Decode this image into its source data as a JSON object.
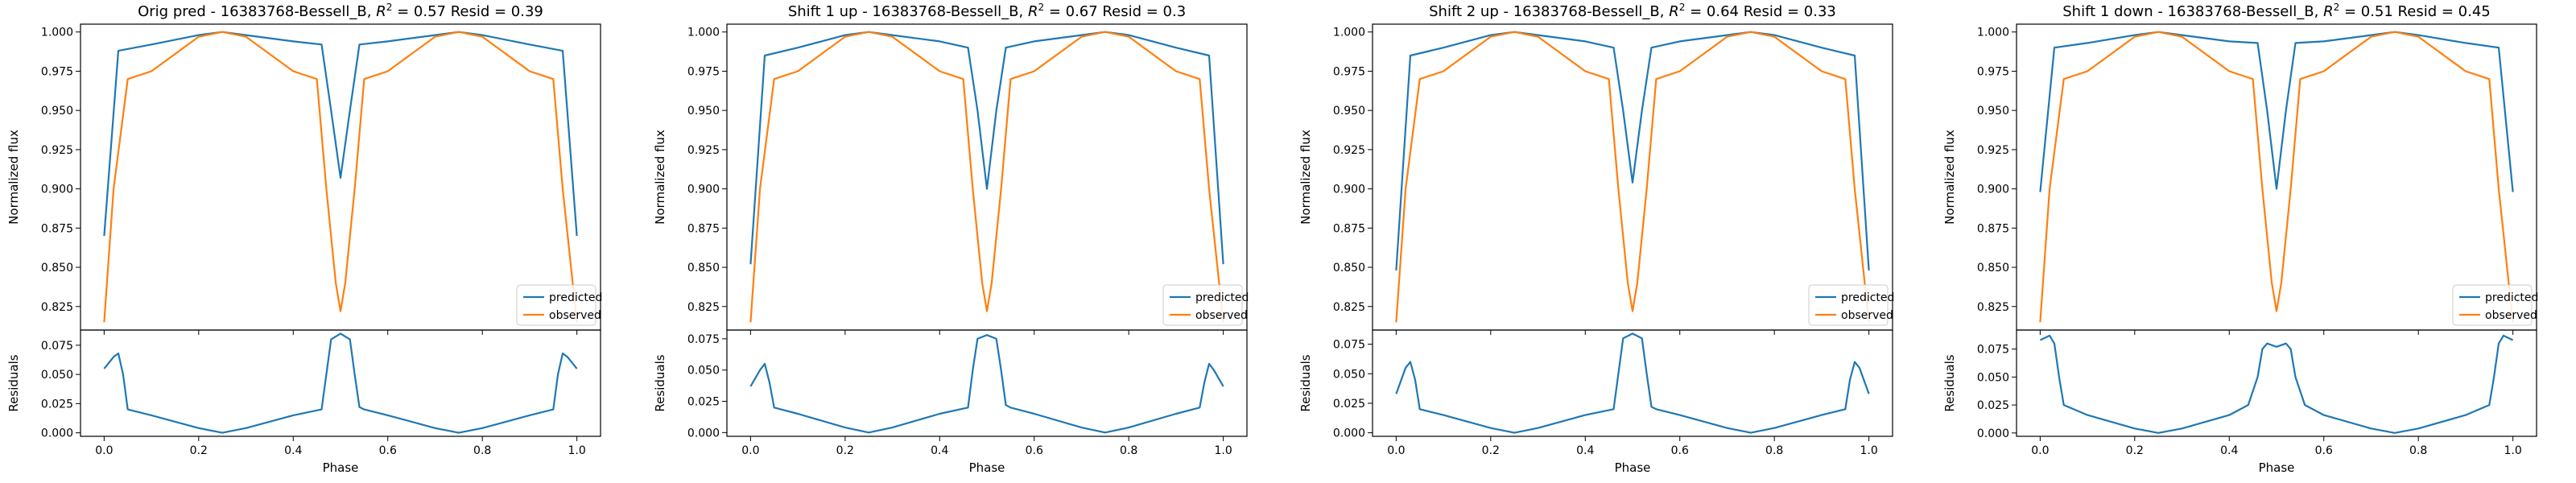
{
  "figure": {
    "colors": {
      "predicted": "#1f77b4",
      "observed": "#ff7f0e",
      "axes": "#000000"
    }
  },
  "chart_data": [
    {
      "type": "line",
      "title": "Orig pred - 16383768-Bessell_B, $R^2 = 0.57$ Resid = 0.39",
      "title_parts": {
        "pre": "Orig pred - 16383768-Bessell_B, ",
        "r": "R",
        "sup": "2",
        "post": " = 0.57 Resid = 0.39"
      },
      "top": {
        "ylabel": "Normalized flux",
        "xlim": [
          -0.05,
          1.05
        ],
        "ylim": [
          0.81,
          1.005
        ],
        "yticks": [
          "0.825",
          "0.850",
          "0.875",
          "0.900",
          "0.925",
          "0.950",
          "0.975",
          "1.000"
        ],
        "legend": "lower right",
        "series": [
          {
            "name": "predicted",
            "x": [
              0.0,
              0.03,
              0.1,
              0.2,
              0.25,
              0.3,
              0.4,
              0.46,
              0.48,
              0.5,
              0.52,
              0.54,
              0.6,
              0.7,
              0.75,
              0.8,
              0.9,
              0.97,
              1.0
            ],
            "y": [
              0.87,
              0.988,
              0.992,
              0.998,
              1.0,
              0.998,
              0.994,
              0.992,
              0.95,
              0.907,
              0.95,
              0.992,
              0.994,
              0.998,
              1.0,
              0.998,
              0.992,
              0.988,
              0.87
            ]
          },
          {
            "name": "observed",
            "x": [
              0.0,
              0.02,
              0.05,
              0.1,
              0.2,
              0.25,
              0.3,
              0.4,
              0.45,
              0.47,
              0.49,
              0.5,
              0.51,
              0.53,
              0.55,
              0.6,
              0.7,
              0.75,
              0.8,
              0.9,
              0.95,
              0.97,
              1.0
            ],
            "y": [
              0.815,
              0.9,
              0.97,
              0.975,
              0.997,
              1.0,
              0.997,
              0.975,
              0.97,
              0.9,
              0.84,
              0.822,
              0.84,
              0.9,
              0.97,
              0.975,
              0.997,
              1.0,
              0.997,
              0.975,
              0.97,
              0.9,
              0.815
            ]
          }
        ]
      },
      "bottom": {
        "xlabel": "Phase",
        "ylabel": "Residuals",
        "xlim": [
          -0.05,
          1.05
        ],
        "ylim": [
          -0.003,
          0.088
        ],
        "xticks": [
          "0.0",
          "0.2",
          "0.4",
          "0.6",
          "0.8",
          "1.0"
        ],
        "yticks": [
          "0.000",
          "0.025",
          "0.050",
          "0.075"
        ],
        "series": [
          {
            "name": "residuals",
            "x": [
              0.0,
              0.02,
              0.03,
              0.04,
              0.05,
              0.1,
              0.2,
              0.25,
              0.3,
              0.4,
              0.46,
              0.47,
              0.48,
              0.5,
              0.52,
              0.53,
              0.54,
              0.55,
              0.6,
              0.7,
              0.75,
              0.8,
              0.9,
              0.95,
              0.96,
              0.97,
              0.98,
              1.0
            ],
            "y": [
              0.055,
              0.065,
              0.068,
              0.05,
              0.02,
              0.015,
              0.004,
              0.0,
              0.004,
              0.015,
              0.02,
              0.05,
              0.08,
              0.085,
              0.08,
              0.05,
              0.022,
              0.02,
              0.015,
              0.004,
              0.0,
              0.004,
              0.015,
              0.02,
              0.05,
              0.068,
              0.065,
              0.055
            ]
          }
        ]
      }
    },
    {
      "type": "line",
      "title": "Shift 1 up - 16383768-Bessell_B, $R^2 = 0.67$ Resid = 0.3",
      "title_parts": {
        "pre": "Shift 1 up - 16383768-Bessell_B, ",
        "r": "R",
        "sup": "2",
        "post": " = 0.67 Resid = 0.3"
      },
      "top": {
        "ylabel": "Normalized flux",
        "xlim": [
          -0.05,
          1.05
        ],
        "ylim": [
          0.81,
          1.005
        ],
        "yticks": [
          "0.825",
          "0.850",
          "0.875",
          "0.900",
          "0.925",
          "0.950",
          "0.975",
          "1.000"
        ],
        "legend": "lower right",
        "series": [
          {
            "name": "predicted",
            "x": [
              0.0,
              0.03,
              0.1,
              0.2,
              0.25,
              0.3,
              0.4,
              0.46,
              0.48,
              0.5,
              0.52,
              0.54,
              0.6,
              0.7,
              0.75,
              0.8,
              0.9,
              0.97,
              1.0
            ],
            "y": [
              0.852,
              0.985,
              0.99,
              0.998,
              1.0,
              0.998,
              0.994,
              0.99,
              0.95,
              0.9,
              0.95,
              0.99,
              0.994,
              0.998,
              1.0,
              0.998,
              0.99,
              0.985,
              0.852
            ]
          },
          {
            "name": "observed",
            "x": [
              0.0,
              0.02,
              0.05,
              0.1,
              0.2,
              0.25,
              0.3,
              0.4,
              0.45,
              0.47,
              0.49,
              0.5,
              0.51,
              0.53,
              0.55,
              0.6,
              0.7,
              0.75,
              0.8,
              0.9,
              0.95,
              0.97,
              1.0
            ],
            "y": [
              0.815,
              0.9,
              0.97,
              0.975,
              0.997,
              1.0,
              0.997,
              0.975,
              0.97,
              0.9,
              0.84,
              0.822,
              0.84,
              0.9,
              0.97,
              0.975,
              0.997,
              1.0,
              0.997,
              0.975,
              0.97,
              0.9,
              0.815
            ]
          }
        ]
      },
      "bottom": {
        "xlabel": "Phase",
        "ylabel": "Residuals",
        "xlim": [
          -0.05,
          1.05
        ],
        "ylim": [
          -0.003,
          0.082
        ],
        "xticks": [
          "0.0",
          "0.2",
          "0.4",
          "0.6",
          "0.8",
          "1.0"
        ],
        "yticks": [
          "0.000",
          "0.025",
          "0.050",
          "0.075"
        ],
        "series": [
          {
            "name": "residuals",
            "x": [
              0.0,
              0.02,
              0.03,
              0.04,
              0.05,
              0.1,
              0.2,
              0.25,
              0.3,
              0.4,
              0.46,
              0.47,
              0.48,
              0.5,
              0.52,
              0.53,
              0.54,
              0.55,
              0.6,
              0.7,
              0.75,
              0.8,
              0.9,
              0.95,
              0.96,
              0.97,
              0.98,
              1.0
            ],
            "y": [
              0.037,
              0.05,
              0.055,
              0.04,
              0.02,
              0.015,
              0.004,
              0.0,
              0.004,
              0.015,
              0.02,
              0.05,
              0.075,
              0.078,
              0.075,
              0.05,
              0.022,
              0.02,
              0.015,
              0.004,
              0.0,
              0.004,
              0.015,
              0.02,
              0.04,
              0.055,
              0.05,
              0.037
            ]
          }
        ]
      }
    },
    {
      "type": "line",
      "title": "Shift 2 up - 16383768-Bessell_B, $R^2 = 0.64$ Resid = 0.33",
      "title_parts": {
        "pre": "Shift 2 up - 16383768-Bessell_B, ",
        "r": "R",
        "sup": "2",
        "post": " = 0.64 Resid = 0.33"
      },
      "top": {
        "ylabel": "Normalized flux",
        "xlim": [
          -0.05,
          1.05
        ],
        "ylim": [
          0.81,
          1.005
        ],
        "yticks": [
          "0.825",
          "0.850",
          "0.875",
          "0.900",
          "0.925",
          "0.950",
          "0.975",
          "1.000"
        ],
        "legend": "lower right",
        "series": [
          {
            "name": "predicted",
            "x": [
              0.0,
              0.03,
              0.1,
              0.2,
              0.25,
              0.3,
              0.4,
              0.46,
              0.48,
              0.5,
              0.52,
              0.54,
              0.6,
              0.7,
              0.75,
              0.8,
              0.9,
              0.97,
              1.0
            ],
            "y": [
              0.848,
              0.985,
              0.99,
              0.998,
              1.0,
              0.998,
              0.994,
              0.99,
              0.95,
              0.904,
              0.95,
              0.99,
              0.994,
              0.998,
              1.0,
              0.998,
              0.99,
              0.985,
              0.848
            ]
          },
          {
            "name": "observed",
            "x": [
              0.0,
              0.02,
              0.05,
              0.1,
              0.2,
              0.25,
              0.3,
              0.4,
              0.45,
              0.47,
              0.49,
              0.5,
              0.51,
              0.53,
              0.55,
              0.6,
              0.7,
              0.75,
              0.8,
              0.9,
              0.95,
              0.97,
              1.0
            ],
            "y": [
              0.815,
              0.9,
              0.97,
              0.975,
              0.997,
              1.0,
              0.997,
              0.975,
              0.97,
              0.9,
              0.84,
              0.822,
              0.84,
              0.9,
              0.97,
              0.975,
              0.997,
              1.0,
              0.997,
              0.975,
              0.97,
              0.9,
              0.815
            ]
          }
        ]
      },
      "bottom": {
        "xlabel": "Phase",
        "ylabel": "Residuals",
        "xlim": [
          -0.05,
          1.05
        ],
        "ylim": [
          -0.003,
          0.087
        ],
        "xticks": [
          "0.0",
          "0.2",
          "0.4",
          "0.6",
          "0.8",
          "1.0"
        ],
        "yticks": [
          "0.000",
          "0.025",
          "0.050",
          "0.075"
        ],
        "series": [
          {
            "name": "residuals",
            "x": [
              0.0,
              0.02,
              0.03,
              0.04,
              0.05,
              0.1,
              0.2,
              0.25,
              0.3,
              0.4,
              0.46,
              0.47,
              0.48,
              0.5,
              0.52,
              0.53,
              0.54,
              0.55,
              0.6,
              0.7,
              0.75,
              0.8,
              0.9,
              0.95,
              0.96,
              0.97,
              0.98,
              1.0
            ],
            "y": [
              0.033,
              0.055,
              0.06,
              0.045,
              0.02,
              0.015,
              0.004,
              0.0,
              0.004,
              0.015,
              0.02,
              0.05,
              0.08,
              0.084,
              0.08,
              0.05,
              0.022,
              0.02,
              0.015,
              0.004,
              0.0,
              0.004,
              0.015,
              0.02,
              0.045,
              0.06,
              0.055,
              0.033
            ]
          }
        ]
      }
    },
    {
      "type": "line",
      "title": "Shift 1 down - 16383768-Bessell_B, $R^2 = 0.51$ Resid = 0.45",
      "title_parts": {
        "pre": "Shift 1 down - 16383768-Bessell_B, ",
        "r": "R",
        "sup": "2",
        "post": " = 0.51 Resid = 0.45"
      },
      "top": {
        "ylabel": "Normalized flux",
        "xlim": [
          -0.05,
          1.05
        ],
        "ylim": [
          0.81,
          1.005
        ],
        "yticks": [
          "0.825",
          "0.850",
          "0.875",
          "0.900",
          "0.925",
          "0.950",
          "0.975",
          "1.000"
        ],
        "legend": "lower right",
        "series": [
          {
            "name": "predicted",
            "x": [
              0.0,
              0.03,
              0.1,
              0.2,
              0.25,
              0.3,
              0.4,
              0.46,
              0.48,
              0.5,
              0.52,
              0.54,
              0.6,
              0.7,
              0.75,
              0.8,
              0.9,
              0.97,
              1.0
            ],
            "y": [
              0.898,
              0.99,
              0.993,
              0.998,
              1.0,
              0.998,
              0.994,
              0.993,
              0.95,
              0.9,
              0.95,
              0.993,
              0.994,
              0.998,
              1.0,
              0.998,
              0.993,
              0.99,
              0.898
            ]
          },
          {
            "name": "observed",
            "x": [
              0.0,
              0.02,
              0.05,
              0.1,
              0.2,
              0.25,
              0.3,
              0.4,
              0.45,
              0.47,
              0.49,
              0.5,
              0.51,
              0.53,
              0.55,
              0.6,
              0.7,
              0.75,
              0.8,
              0.9,
              0.95,
              0.97,
              1.0
            ],
            "y": [
              0.815,
              0.9,
              0.97,
              0.975,
              0.997,
              1.0,
              0.997,
              0.975,
              0.97,
              0.9,
              0.84,
              0.822,
              0.84,
              0.9,
              0.97,
              0.975,
              0.997,
              1.0,
              0.997,
              0.975,
              0.97,
              0.9,
              0.815
            ]
          }
        ]
      },
      "bottom": {
        "xlabel": "Phase",
        "ylabel": "Residuals",
        "xlim": [
          -0.05,
          1.05
        ],
        "ylim": [
          -0.003,
          0.092
        ],
        "xticks": [
          "0.0",
          "0.2",
          "0.4",
          "0.6",
          "0.8",
          "1.0"
        ],
        "yticks": [
          "0.000",
          "0.025",
          "0.050",
          "0.075"
        ],
        "series": [
          {
            "name": "residuals",
            "x": [
              0.0,
              0.01,
              0.02,
              0.03,
              0.04,
              0.05,
              0.1,
              0.2,
              0.25,
              0.3,
              0.4,
              0.44,
              0.46,
              0.47,
              0.48,
              0.5,
              0.52,
              0.53,
              0.54,
              0.56,
              0.6,
              0.7,
              0.75,
              0.8,
              0.9,
              0.95,
              0.96,
              0.97,
              0.98,
              1.0
            ],
            "y": [
              0.083,
              0.085,
              0.087,
              0.08,
              0.05,
              0.025,
              0.016,
              0.004,
              0.0,
              0.004,
              0.016,
              0.025,
              0.05,
              0.075,
              0.08,
              0.077,
              0.08,
              0.075,
              0.05,
              0.025,
              0.016,
              0.004,
              0.0,
              0.004,
              0.016,
              0.025,
              0.05,
              0.08,
              0.087,
              0.083
            ]
          }
        ]
      }
    }
  ]
}
